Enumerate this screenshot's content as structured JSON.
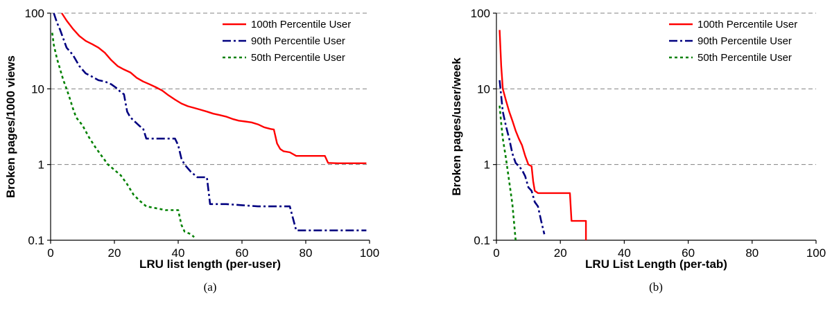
{
  "colors": {
    "p100": "#ff0000",
    "p90": "#000080",
    "p50": "#008000",
    "grid": "#808080"
  },
  "chart_data": [
    {
      "type": "line",
      "caption": "(a)",
      "xlabel": "LRU list length (per-user)",
      "ylabel": "Broken pages/1000 views",
      "xlim": [
        0,
        100
      ],
      "ylim": [
        0.1,
        100
      ],
      "yscale": "log",
      "xticks": [
        "0",
        "20",
        "40",
        "60",
        "80",
        "100"
      ],
      "yticks": [
        "0.1",
        "1",
        "10",
        "100"
      ],
      "grid": "horizontal dashed",
      "legend_position": "top-right",
      "series": [
        {
          "name": "100th Percentile User",
          "color_key": "p100",
          "style": "solid",
          "x": [
            3.5,
            5,
            7,
            9,
            11,
            13,
            15,
            17,
            19,
            21,
            23,
            25,
            27,
            29,
            31,
            33,
            35,
            37,
            39,
            41,
            43,
            45,
            47,
            49,
            51,
            53,
            55,
            57,
            59,
            61,
            63,
            65,
            67,
            69,
            70,
            71,
            72,
            73,
            75,
            77,
            80,
            83,
            86,
            87,
            90,
            95,
            99
          ],
          "y": [
            100,
            80,
            62,
            50,
            43,
            39,
            35,
            30,
            24,
            20,
            18,
            16.5,
            14,
            12.5,
            11.5,
            10.5,
            9.5,
            8.2,
            7.2,
            6.4,
            5.9,
            5.6,
            5.3,
            5.0,
            4.7,
            4.5,
            4.3,
            4.0,
            3.8,
            3.7,
            3.6,
            3.4,
            3.1,
            2.95,
            2.9,
            1.9,
            1.6,
            1.5,
            1.45,
            1.3,
            1.3,
            1.3,
            1.3,
            1.05,
            1.04,
            1.04,
            1.04
          ]
        },
        {
          "name": "90th Percentile User",
          "color_key": "p90",
          "style": "dashdot",
          "x": [
            1,
            2,
            3,
            5,
            7,
            9,
            11,
            13,
            15,
            17,
            19,
            21,
            22,
            23,
            23.5,
            24,
            25,
            27,
            28,
            29,
            30,
            31,
            33,
            35,
            37,
            39,
            40,
            41,
            42,
            44,
            46,
            48,
            49,
            50,
            55,
            60,
            65,
            70,
            75,
            77,
            80,
            85,
            90,
            95,
            99
          ],
          "y": [
            100,
            75,
            60,
            35,
            28,
            20,
            16,
            14.5,
            13,
            12.5,
            11.5,
            10,
            9,
            8.5,
            6.5,
            5,
            4.2,
            3.5,
            3.2,
            3.0,
            2.2,
            2.2,
            2.2,
            2.2,
            2.2,
            2.2,
            1.8,
            1.2,
            1.0,
            0.8,
            0.68,
            0.68,
            0.68,
            0.3,
            0.3,
            0.29,
            0.28,
            0.28,
            0.28,
            0.135,
            0.135,
            0.135,
            0.135,
            0.135,
            0.135
          ]
        },
        {
          "name": "50th Percentile User",
          "color_key": "p50",
          "style": "dotted",
          "x": [
            0.5,
            1,
            2,
            3,
            4,
            5,
            6,
            7,
            8,
            10,
            12,
            14,
            16,
            18,
            20,
            22,
            24,
            26,
            28,
            30,
            32,
            34,
            36,
            38,
            40,
            41,
            42,
            44,
            45
          ],
          "y": [
            55,
            38,
            25,
            18,
            13,
            10,
            7.5,
            5.5,
            4.2,
            3.3,
            2.3,
            1.7,
            1.3,
            1.0,
            0.85,
            0.72,
            0.55,
            0.4,
            0.33,
            0.28,
            0.27,
            0.26,
            0.25,
            0.25,
            0.25,
            0.16,
            0.13,
            0.12,
            0.11
          ]
        }
      ]
    },
    {
      "type": "line",
      "caption": "(b)",
      "xlabel": "LRU List Length (per-tab)",
      "ylabel": "Broken pages/user/week",
      "xlim": [
        0,
        100
      ],
      "ylim": [
        0.1,
        100
      ],
      "yscale": "log",
      "xticks": [
        "0",
        "20",
        "40",
        "60",
        "80",
        "100"
      ],
      "yticks": [
        "0.1",
        "1",
        "10",
        "100"
      ],
      "grid": "horizontal dashed",
      "legend_position": "top-right",
      "series": [
        {
          "name": "100th Percentile User",
          "color_key": "p100",
          "style": "solid",
          "x": [
            1,
            1.5,
            2,
            3,
            4,
            5,
            6,
            7,
            8,
            9,
            10,
            11,
            11.5,
            12,
            13,
            15,
            18,
            20,
            22,
            23,
            23.5,
            25,
            27,
            28,
            28
          ],
          "y": [
            60,
            20,
            10,
            7,
            5,
            3.8,
            2.8,
            2.2,
            1.8,
            1.3,
            1.0,
            0.95,
            0.6,
            0.45,
            0.42,
            0.42,
            0.42,
            0.42,
            0.42,
            0.42,
            0.18,
            0.18,
            0.18,
            0.18,
            0.1
          ]
        },
        {
          "name": "90th Percentile User",
          "color_key": "p90",
          "style": "dashdot",
          "x": [
            1,
            1.5,
            2,
            3,
            4,
            5,
            6,
            7,
            8,
            9,
            10,
            11,
            12,
            13,
            14,
            15
          ],
          "y": [
            13,
            8,
            5,
            3.2,
            2.2,
            1.4,
            1.05,
            0.95,
            0.85,
            0.7,
            0.5,
            0.45,
            0.32,
            0.28,
            0.18,
            0.12
          ]
        },
        {
          "name": "50th Percentile User",
          "color_key": "p50",
          "style": "dotted",
          "x": [
            1,
            1.5,
            2,
            3,
            4,
            5,
            6
          ],
          "y": [
            6,
            3.5,
            2.2,
            1.2,
            0.6,
            0.3,
            0.1
          ]
        }
      ]
    }
  ]
}
